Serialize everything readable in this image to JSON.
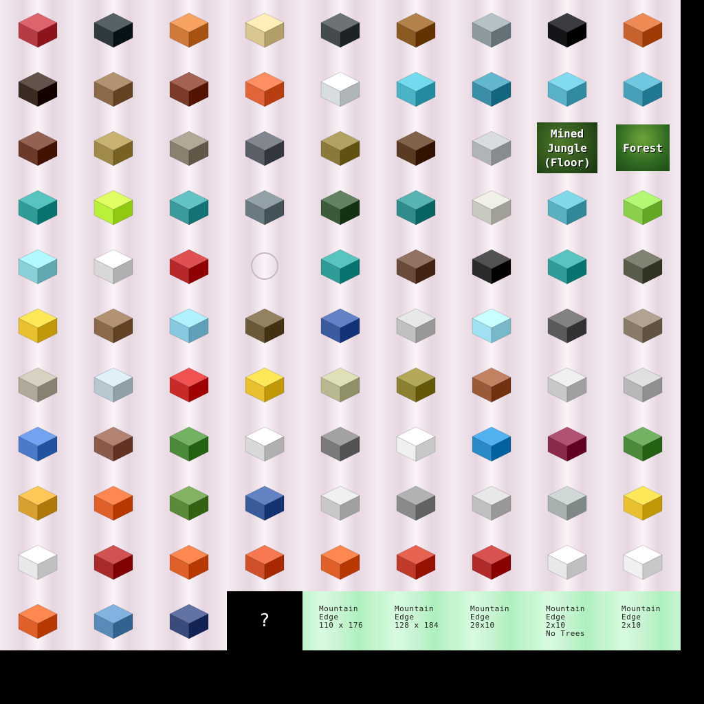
{
  "sheet": {
    "columns": 9,
    "rows": 11,
    "background": "#000000",
    "cell_tint": "#f0e4ec",
    "green_tint": "#c4f4cf"
  },
  "items": [
    {
      "kind": "object",
      "name": "checkered-room-icon",
      "color": "#b53b45"
    },
    {
      "kind": "object",
      "name": "dark-tile-room-icon",
      "color": "#2e3a3d"
    },
    {
      "kind": "object",
      "name": "orange-furnished-room-icon",
      "color": "#d07a3a"
    },
    {
      "kind": "object",
      "name": "lattice-screen-icon",
      "color": "#d9c690"
    },
    {
      "kind": "object",
      "name": "grey-tiled-room-icon",
      "color": "#444a4e"
    },
    {
      "kind": "object",
      "name": "aquarium-bar-icon",
      "color": "#8a5a22"
    },
    {
      "kind": "object",
      "name": "elevator-booth-icon",
      "color": "#8c9aa0"
    },
    {
      "kind": "object",
      "name": "grand-piano-icon",
      "color": "#141418"
    },
    {
      "kind": "object",
      "name": "tiki-bar-icon",
      "color": "#c7622c"
    },
    {
      "kind": "object",
      "name": "dark-lounge-room-icon",
      "color": "#3a2a22"
    },
    {
      "kind": "object",
      "name": "wooden-floor-tile-icon",
      "color": "#8b6a4a"
    },
    {
      "kind": "object",
      "name": "palm-planter-icon",
      "color": "#7b3a2a"
    },
    {
      "kind": "object",
      "name": "orange-chairs-table-icon",
      "color": "#e0663a"
    },
    {
      "kind": "object",
      "name": "lab-machine-icon",
      "color": "#d8dde0"
    },
    {
      "kind": "object",
      "name": "control-room-icon",
      "color": "#4ab3c6"
    },
    {
      "kind": "object",
      "name": "curved-console-icon",
      "color": "#3a8ea6"
    },
    {
      "kind": "object",
      "name": "booth-module-icon",
      "color": "#5ab2c8"
    },
    {
      "kind": "object",
      "name": "glass-wall-panel-icon",
      "color": "#48a0b8"
    },
    {
      "kind": "object",
      "name": "tiki-pole-icon",
      "color": "#6b3a2a"
    },
    {
      "kind": "object",
      "name": "bamboo-hut-icon",
      "color": "#a08a4a"
    },
    {
      "kind": "object",
      "name": "stone-ramp-icon",
      "color": "#8a8070"
    },
    {
      "kind": "object",
      "name": "tripod-turret-icon",
      "color": "#5a5e66"
    },
    {
      "kind": "object",
      "name": "thatch-hut-icon",
      "color": "#8a7a3a"
    },
    {
      "kind": "object",
      "name": "wooden-fence-icon",
      "color": "#5a3a22"
    },
    {
      "kind": "object",
      "name": "statue-icon",
      "color": "#b0b4b8"
    },
    {
      "kind": "tile",
      "label": "Mined\nJungle\n(Floor)",
      "style": "jungle"
    },
    {
      "kind": "tile",
      "label": "Forest",
      "style": "forest"
    },
    {
      "kind": "object",
      "name": "teal-reactor-icon",
      "color": "#2f9c98"
    },
    {
      "kind": "object",
      "name": "green-vats-icon",
      "color": "#b8f03a"
    },
    {
      "kind": "object",
      "name": "teal-machine-room-icon",
      "color": "#3a9a9c"
    },
    {
      "kind": "object",
      "name": "ring-platform-icon",
      "color": "#6a7a80"
    },
    {
      "kind": "object",
      "name": "hedge-wall-icon",
      "color": "#3a5a3a"
    },
    {
      "kind": "object",
      "name": "teal-console-wall-icon",
      "color": "#2f8c8a"
    },
    {
      "kind": "object",
      "name": "round-pod-icon",
      "color": "#c8c8c0"
    },
    {
      "kind": "object",
      "name": "twin-tube-icon",
      "color": "#58b0c0"
    },
    {
      "kind": "object",
      "name": "green-dome-icon",
      "color": "#8ad04a"
    },
    {
      "kind": "object",
      "name": "glass-tank-icon",
      "color": "#8ad0d8"
    },
    {
      "kind": "object",
      "name": "satellite-drone-icon",
      "color": "#d8d8d8"
    },
    {
      "kind": "object",
      "name": "red-maze-floor-icon",
      "color": "#b8282a"
    },
    {
      "kind": "empty",
      "name": "empty-slot-ring"
    },
    {
      "kind": "object",
      "name": "teal-capsule-icon",
      "color": "#2f9c98"
    },
    {
      "kind": "object",
      "name": "computer-desk-icon",
      "color": "#6a4a3a"
    },
    {
      "kind": "object",
      "name": "dark-counter-icon",
      "color": "#2a2a2a"
    },
    {
      "kind": "object",
      "name": "teal-generator-icon",
      "color": "#2f9c98"
    },
    {
      "kind": "object",
      "name": "stone-cannon-icon",
      "color": "#5a5a4a"
    },
    {
      "kind": "object",
      "name": "golden-pagoda-icon",
      "color": "#e8c030"
    },
    {
      "kind": "object",
      "name": "totem-brazier-icon",
      "color": "#8a6a4a"
    },
    {
      "kind": "object",
      "name": "glass-tube-icon",
      "color": "#88c8e0"
    },
    {
      "kind": "object",
      "name": "stepped-pyramid-icon",
      "color": "#6a5a3a"
    },
    {
      "kind": "object",
      "name": "vending-machine-icon",
      "color": "#3a5aa0"
    },
    {
      "kind": "object",
      "name": "display-case-icon",
      "color": "#c0c0c0"
    },
    {
      "kind": "object",
      "name": "ice-pedestal-icon",
      "color": "#a0e0f0"
    },
    {
      "kind": "object",
      "name": "eiffel-tower-icon",
      "color": "#5a5a5a"
    },
    {
      "kind": "object",
      "name": "rock-sword-icon",
      "color": "#8a7a6a"
    },
    {
      "kind": "object",
      "name": "rock-pedestal-icon",
      "color": "#b0a898"
    },
    {
      "kind": "object",
      "name": "glass-dome-pod-icon",
      "color": "#b8c8d0"
    },
    {
      "kind": "object",
      "name": "red-gyroscope-icon",
      "color": "#c82a2a"
    },
    {
      "kind": "object",
      "name": "jetpack-icon",
      "color": "#e8c030"
    },
    {
      "kind": "object",
      "name": "money-billboard-icon",
      "color": "#b8b890"
    },
    {
      "kind": "object",
      "name": "sarcophagus-icon",
      "color": "#8a8030"
    },
    {
      "kind": "object",
      "name": "woven-rug-icon",
      "color": "#9a5a3a"
    },
    {
      "kind": "object",
      "name": "mummy-case-icon",
      "color": "#c8c8c8"
    },
    {
      "kind": "object",
      "name": "armor-stand-icon",
      "color": "#b8b8b8"
    },
    {
      "kind": "object",
      "name": "blueprint-table-icon",
      "color": "#4a7ac8"
    },
    {
      "kind": "object",
      "name": "viking-ship-icon",
      "color": "#8a5a4a"
    },
    {
      "kind": "object",
      "name": "yoda-statue-icon",
      "color": "#4a8a3a"
    },
    {
      "kind": "object",
      "name": "space-capsule-icon",
      "color": "#d8d8d8"
    },
    {
      "kind": "object",
      "name": "robot-arm-icon",
      "color": "#7a7a7a"
    },
    {
      "kind": "object",
      "name": "astronaut-suit-icon",
      "color": "#f0f0f0"
    },
    {
      "kind": "object",
      "name": "blue-tripod-icon",
      "color": "#2a8ac8"
    },
    {
      "kind": "object",
      "name": "throne-icon",
      "color": "#8a2a4a"
    },
    {
      "kind": "object",
      "name": "totem-pole-icon",
      "color": "#4a8a3a"
    },
    {
      "kind": "object",
      "name": "fish-mask-icon",
      "color": "#d8a030"
    },
    {
      "kind": "object",
      "name": "tiger-mask-icon",
      "color": "#e0602a"
    },
    {
      "kind": "object",
      "name": "green-mask-icon",
      "color": "#5a8a3a"
    },
    {
      "kind": "object",
      "name": "winged-glider-icon",
      "color": "#3a5a9a"
    },
    {
      "kind": "object",
      "name": "kitchen-station-icon",
      "color": "#c8c8c8"
    },
    {
      "kind": "object",
      "name": "buffet-counter-icon",
      "color": "#8a8a8a"
    },
    {
      "kind": "object",
      "name": "kitchen-set-icon",
      "color": "#c0c0c0"
    },
    {
      "kind": "object",
      "name": "salad-bar-icon",
      "color": "#a8b0b0"
    },
    {
      "kind": "object",
      "name": "yellow-suit-figure-icon",
      "color": "#e8c030"
    },
    {
      "kind": "object",
      "name": "hazmat-figure-icon",
      "color": "#e8e8e8"
    },
    {
      "kind": "object",
      "name": "red-suit-figure-icon",
      "color": "#a82a2a"
    },
    {
      "kind": "object",
      "name": "orange-hero-figure-icon",
      "color": "#e0602a"
    },
    {
      "kind": "object",
      "name": "orange-soldier-figure-icon",
      "color": "#d0502a"
    },
    {
      "kind": "object",
      "name": "orange-jumpsuit-figure-icon",
      "color": "#e0602a"
    },
    {
      "kind": "object",
      "name": "red-fighter-figure-icon",
      "color": "#c03a2a"
    },
    {
      "kind": "object",
      "name": "red-jacket-figure-icon",
      "color": "#b02a2a"
    },
    {
      "kind": "object",
      "name": "lab-coat-figure-icon",
      "color": "#e8e8e8"
    },
    {
      "kind": "object",
      "name": "scientist-figure-icon",
      "color": "#f0f0f0"
    },
    {
      "kind": "object",
      "name": "orange-vest-figure-icon",
      "color": "#e0602a"
    },
    {
      "kind": "object",
      "name": "chef-figure-icon",
      "color": "#5a8ab8"
    },
    {
      "kind": "object",
      "name": "suited-figure-icon",
      "color": "#3a4a7a"
    },
    {
      "kind": "unknown",
      "label": "?"
    },
    {
      "kind": "mountain",
      "label": "Mountain\nEdge\n110 x 176"
    },
    {
      "kind": "mountain",
      "label": "Mountain\nEdge\n128 x 184"
    },
    {
      "kind": "mountain",
      "label": "Mountain\nEdge\n20x10"
    },
    {
      "kind": "mountain",
      "label": "Mountain\nEdge\n2x10\nNo Trees"
    },
    {
      "kind": "mountain",
      "label": "Mountain\nEdge\n2x10"
    }
  ]
}
